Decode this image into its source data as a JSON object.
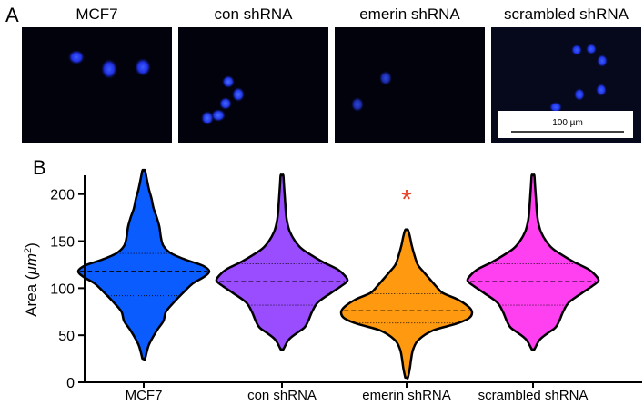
{
  "panels": {
    "a_label": "A",
    "b_label": "B"
  },
  "images": [
    {
      "title": "MCF7"
    },
    {
      "title": "con shRNA"
    },
    {
      "title": "emerin shRNA"
    },
    {
      "title": "scrambled shRNA"
    }
  ],
  "scale_bar": {
    "label": "100 µm"
  },
  "significance": {
    "symbol": "*",
    "color": "#e8432a",
    "category_index": 2
  },
  "chart_data": {
    "type": "violin",
    "ylabel_main": "Area (",
    "ylabel_unit": "μm",
    "ylabel_sup": "2",
    "ylabel_close": ")",
    "ylim": [
      0,
      220
    ],
    "yticks": [
      0,
      50,
      100,
      150,
      200
    ],
    "categories": [
      "MCF7",
      "con shRNA",
      "emerin shRNA",
      "scrambled shRNA"
    ],
    "series": [
      {
        "color": "#0b5cff",
        "min": 25,
        "max": 225,
        "q1": 92,
        "median": 118,
        "q3": 137,
        "density": [
          [
            25,
            0.02
          ],
          [
            40,
            0.08
          ],
          [
            55,
            0.2
          ],
          [
            65,
            0.3
          ],
          [
            75,
            0.34
          ],
          [
            85,
            0.46
          ],
          [
            95,
            0.6
          ],
          [
            105,
            0.75
          ],
          [
            112,
            0.92
          ],
          [
            118,
            1.0
          ],
          [
            124,
            0.9
          ],
          [
            130,
            0.65
          ],
          [
            137,
            0.42
          ],
          [
            145,
            0.3
          ],
          [
            155,
            0.26
          ],
          [
            165,
            0.24
          ],
          [
            175,
            0.2
          ],
          [
            185,
            0.15
          ],
          [
            195,
            0.12
          ],
          [
            205,
            0.08
          ],
          [
            215,
            0.05
          ],
          [
            225,
            0.02
          ]
        ]
      },
      {
        "color": "#9a4dff",
        "min": 35,
        "max": 220,
        "q1": 82,
        "median": 107,
        "q3": 126,
        "density": [
          [
            35,
            0.02
          ],
          [
            45,
            0.1
          ],
          [
            52,
            0.22
          ],
          [
            58,
            0.34
          ],
          [
            65,
            0.4
          ],
          [
            75,
            0.46
          ],
          [
            85,
            0.55
          ],
          [
            95,
            0.75
          ],
          [
            102,
            0.9
          ],
          [
            108,
            1.0
          ],
          [
            114,
            0.95
          ],
          [
            120,
            0.85
          ],
          [
            128,
            0.62
          ],
          [
            135,
            0.45
          ],
          [
            142,
            0.3
          ],
          [
            150,
            0.2
          ],
          [
            160,
            0.12
          ],
          [
            170,
            0.08
          ],
          [
            180,
            0.06
          ],
          [
            190,
            0.05
          ],
          [
            200,
            0.04
          ],
          [
            210,
            0.03
          ],
          [
            220,
            0.02
          ]
        ]
      },
      {
        "color": "#ff9a10",
        "min": 5,
        "max": 162,
        "q1": 63,
        "median": 76,
        "q3": 94,
        "density": [
          [
            5,
            0.02
          ],
          [
            15,
            0.05
          ],
          [
            25,
            0.07
          ],
          [
            35,
            0.1
          ],
          [
            45,
            0.18
          ],
          [
            55,
            0.4
          ],
          [
            62,
            0.75
          ],
          [
            68,
            0.95
          ],
          [
            74,
            1.0
          ],
          [
            80,
            0.95
          ],
          [
            88,
            0.78
          ],
          [
            95,
            0.55
          ],
          [
            102,
            0.45
          ],
          [
            110,
            0.35
          ],
          [
            118,
            0.25
          ],
          [
            125,
            0.17
          ],
          [
            135,
            0.12
          ],
          [
            145,
            0.08
          ],
          [
            155,
            0.05
          ],
          [
            162,
            0.02
          ]
        ]
      },
      {
        "color": "#ff40f0",
        "min": 35,
        "max": 220,
        "q1": 82,
        "median": 107,
        "q3": 126,
        "density": [
          [
            35,
            0.02
          ],
          [
            45,
            0.1
          ],
          [
            52,
            0.22
          ],
          [
            58,
            0.34
          ],
          [
            65,
            0.4
          ],
          [
            75,
            0.46
          ],
          [
            85,
            0.55
          ],
          [
            95,
            0.75
          ],
          [
            102,
            0.9
          ],
          [
            108,
            1.0
          ],
          [
            114,
            0.95
          ],
          [
            120,
            0.85
          ],
          [
            128,
            0.62
          ],
          [
            135,
            0.45
          ],
          [
            142,
            0.3
          ],
          [
            150,
            0.2
          ],
          [
            160,
            0.12
          ],
          [
            170,
            0.08
          ],
          [
            180,
            0.06
          ],
          [
            190,
            0.05
          ],
          [
            200,
            0.04
          ],
          [
            210,
            0.03
          ],
          [
            220,
            0.02
          ]
        ]
      }
    ]
  }
}
